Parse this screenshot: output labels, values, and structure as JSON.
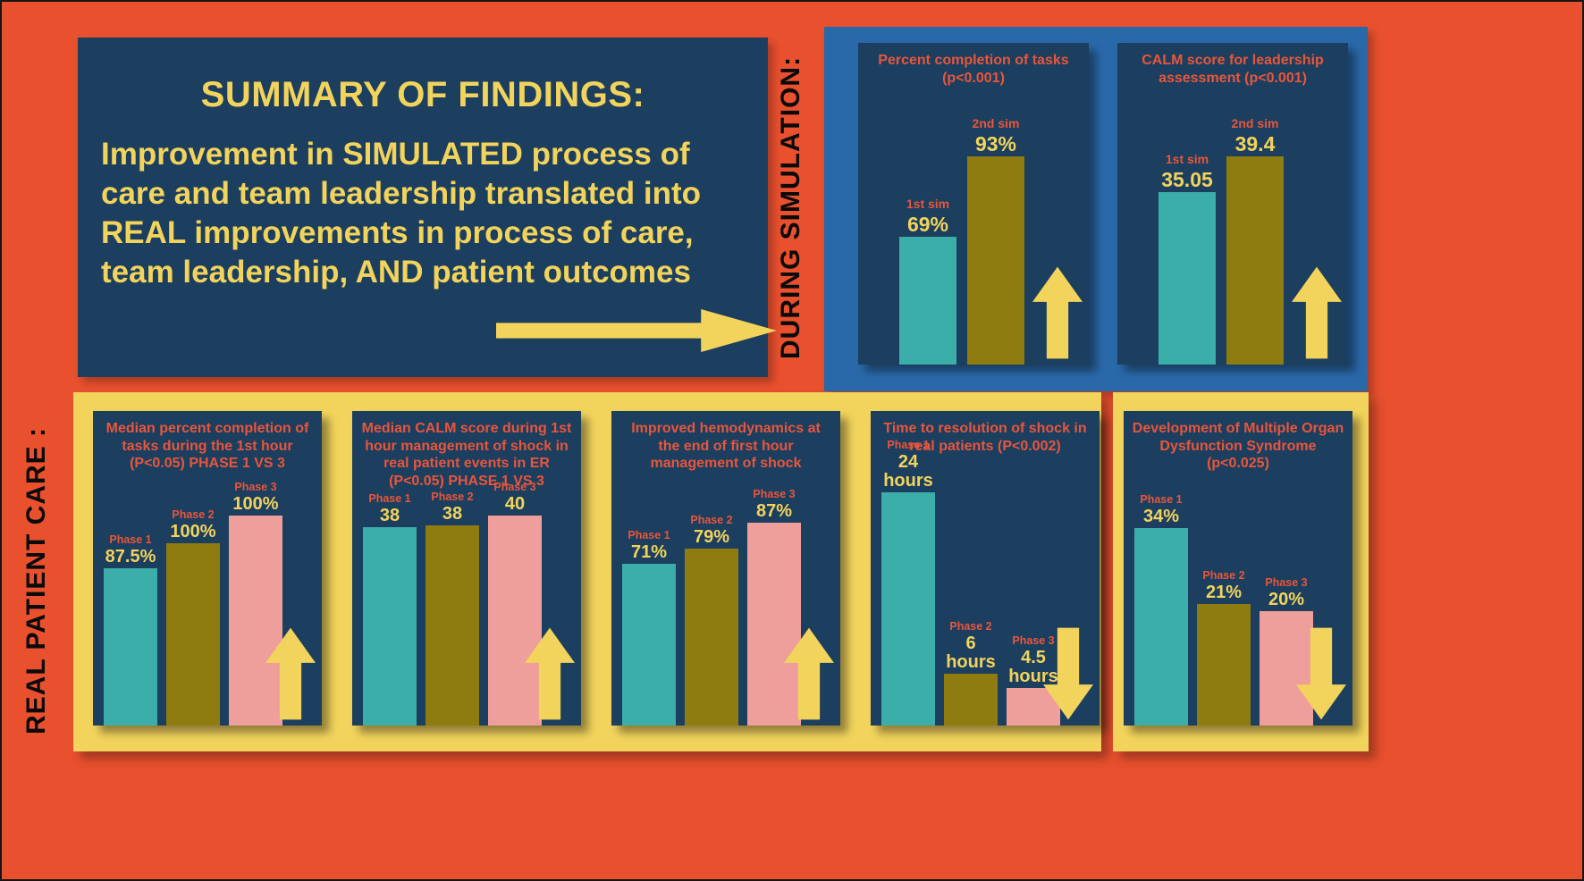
{
  "colors": {
    "background": "#E8502E",
    "panel_navy": "#1C3E5F",
    "panel_blue": "#2A69A9",
    "panel_yellow": "#F2D45C",
    "accent_yellow": "#F2D45C",
    "accent_red": "#E8563B",
    "bar_teal": "#3BAEA9",
    "bar_olive": "#8E7C10",
    "bar_pink": "#EE9E9B",
    "section_label_black": "#0A0A0A"
  },
  "summary": {
    "title": "SUMMARY OF FINDINGS:",
    "body": "Improvement in SIMULATED process of care and team leadership translated into REAL improvements in process of care, team leadership, AND patient outcomes"
  },
  "labels": {
    "simulation": "DURING SIMULATION:",
    "real": "REAL PATIENT CARE :"
  },
  "chart_data": [
    {
      "id": "sim-task-completion",
      "type": "bar",
      "group": "during_simulation",
      "title": "Percent completion of tasks (p<0.001)",
      "categories": [
        "1st sim",
        "2nd sim"
      ],
      "values": [
        69,
        93
      ],
      "value_labels": [
        "69%",
        "93%"
      ],
      "unit": "%",
      "trend_arrow": "up",
      "legend": "none",
      "grid": false,
      "bar_colors": [
        "#3BAEA9",
        "#8E7C10"
      ],
      "height_pct": [
        46,
        75
      ]
    },
    {
      "id": "sim-calm-score",
      "type": "bar",
      "group": "during_simulation",
      "title": "CALM score for leadership assessment (p<0.001)",
      "categories": [
        "1st sim",
        "2nd sim"
      ],
      "values": [
        35.05,
        39.4
      ],
      "value_labels": [
        "35.05",
        "39.4"
      ],
      "unit": "score",
      "trend_arrow": "up",
      "legend": "none",
      "grid": false,
      "bar_colors": [
        "#3BAEA9",
        "#8E7C10"
      ],
      "height_pct": [
        62,
        75
      ]
    },
    {
      "id": "real-task-completion",
      "type": "bar",
      "group": "real_patient_care",
      "title": "Median percent completion of tasks during the 1st hour (P<0.05) PHASE 1 VS 3",
      "categories": [
        "Phase 1",
        "Phase 2",
        "Phase 3"
      ],
      "values": [
        87.5,
        100,
        100
      ],
      "value_labels": [
        "87.5%",
        "100%",
        "100%"
      ],
      "unit": "%",
      "trend_arrow": "up",
      "legend": "none",
      "grid": false,
      "bar_colors": [
        "#3BAEA9",
        "#8E7C10",
        "#EE9E9B"
      ],
      "height_pct": [
        62,
        72,
        83
      ]
    },
    {
      "id": "real-calm-score",
      "type": "bar",
      "group": "real_patient_care",
      "title": "Median CALM score during 1st hour management of shock in real patient events in ER (P<0.05) PHASE 1 VS 3",
      "categories": [
        "Phase 1",
        "Phase 2",
        "Phase 3"
      ],
      "values": [
        38,
        38,
        40
      ],
      "value_labels": [
        "38",
        "38",
        "40"
      ],
      "unit": "score",
      "trend_arrow": "up",
      "legend": "none",
      "grid": false,
      "bar_colors": [
        "#3BAEA9",
        "#8E7C10",
        "#EE9E9B"
      ],
      "height_pct": [
        84,
        85,
        89
      ]
    },
    {
      "id": "real-hemodynamics",
      "type": "bar",
      "group": "real_patient_care",
      "title": "Improved hemodynamics at the end of  first hour management of shock",
      "categories": [
        "Phase 1",
        "Phase 2",
        "Phase 3"
      ],
      "values": [
        71,
        79,
        87
      ],
      "value_labels": [
        "71%",
        "79%",
        "87%"
      ],
      "unit": "%",
      "trend_arrow": "up",
      "legend": "none",
      "grid": false,
      "bar_colors": [
        "#3BAEA9",
        "#8E7C10",
        "#EE9E9B"
      ],
      "height_pct": [
        64,
        70,
        80
      ]
    },
    {
      "id": "real-shock-resolution-time",
      "type": "bar",
      "group": "real_patient_care",
      "title": "Time to resolution of shock in real patients (P<0.002)",
      "categories": [
        "Phase 1",
        "Phase 2",
        "Phase 3"
      ],
      "values": [
        24,
        6,
        4.5
      ],
      "value_labels": [
        "24 hours",
        "6 hours",
        "4.5 hours"
      ],
      "unit": "hours",
      "trend_arrow": "down",
      "legend": "none",
      "grid": false,
      "bar_colors": [
        "#3BAEA9",
        "#8E7C10",
        "#EE9E9B"
      ],
      "height_pct": [
        86,
        19,
        14
      ]
    },
    {
      "id": "real-mods",
      "type": "bar",
      "group": "real_patient_care",
      "title": "Development of Multiple Organ Dysfunction Syndrome (p<0.025)",
      "categories": [
        "Phase 1",
        "Phase 2",
        "Phase 3"
      ],
      "values": [
        34,
        21,
        20
      ],
      "value_labels": [
        "34%",
        "21%",
        "20%"
      ],
      "unit": "%",
      "trend_arrow": "down",
      "legend": "none",
      "grid": false,
      "bar_colors": [
        "#3BAEA9",
        "#8E7C10",
        "#EE9E9B"
      ],
      "height_pct": [
        78,
        48,
        45
      ]
    }
  ]
}
